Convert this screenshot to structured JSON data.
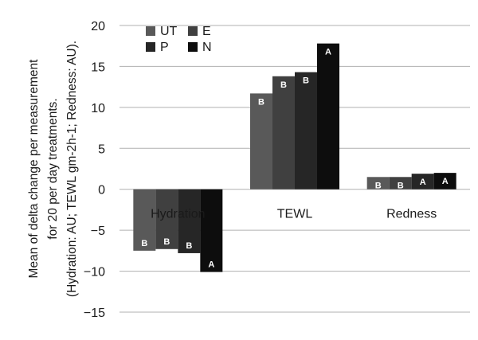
{
  "chart_data": {
    "type": "bar",
    "title": "",
    "xlabel": "",
    "ylabel_lines": [
      "Mean of delta change per measurement",
      "for 20 per day treatments.",
      "(Hydration: AU; TEWL gm-2h-1; Redness: AU)."
    ],
    "categories": [
      "Hydration",
      "TEWL",
      "Redness"
    ],
    "ylim": [
      -15,
      20
    ],
    "yticks": [
      20,
      15,
      10,
      5,
      0,
      -5,
      -10,
      -15
    ],
    "ytick_labels": [
      "20",
      "15",
      "10",
      "5",
      "0",
      "−5",
      "−10",
      "−15"
    ],
    "grid": true,
    "legend": "top-left",
    "series": [
      {
        "name": "UT",
        "color": "#595959",
        "values": [
          -7.5,
          11.7,
          1.5
        ],
        "labels": [
          "B",
          "B",
          "B"
        ]
      },
      {
        "name": "E",
        "color": "#404040",
        "values": [
          -7.3,
          13.8,
          1.5
        ],
        "labels": [
          "B",
          "B",
          "B"
        ]
      },
      {
        "name": "P",
        "color": "#262626",
        "values": [
          -7.8,
          14.3,
          1.9
        ],
        "labels": [
          "B",
          "B",
          "A"
        ]
      },
      {
        "name": "N",
        "color": "#0d0d0d",
        "values": [
          -10.1,
          17.8,
          2.0
        ],
        "labels": [
          "A",
          "A",
          "A"
        ]
      }
    ]
  }
}
